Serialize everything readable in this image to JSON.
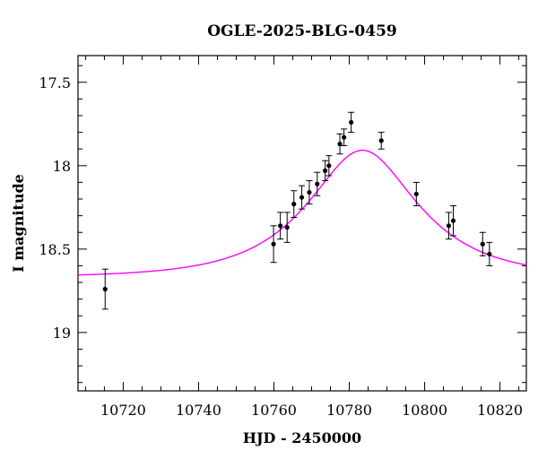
{
  "chart_data": {
    "type": "scatter",
    "title": "OGLE-2025-BLG-0459",
    "xlabel": "HJD - 2450000",
    "ylabel": "I magnitude",
    "xlim": [
      10708,
      10827
    ],
    "ylim": [
      19.35,
      17.34
    ],
    "y_inverted": true,
    "x_ticks": [
      10720,
      10740,
      10760,
      10780,
      10800,
      10820
    ],
    "y_ticks": [
      17.5,
      18,
      18.5,
      19
    ],
    "y_tick_labels": [
      "17.5",
      "18",
      "18.5",
      "19"
    ],
    "grid": false,
    "series": [
      {
        "kind": "data_with_errors",
        "color": "#000000",
        "points": [
          {
            "x": 10715.2,
            "y": 18.74,
            "err": 0.12
          },
          {
            "x": 10759.9,
            "y": 18.47,
            "err": 0.11
          },
          {
            "x": 10761.7,
            "y": 18.36,
            "err": 0.08
          },
          {
            "x": 10763.5,
            "y": 18.37,
            "err": 0.09
          },
          {
            "x": 10765.3,
            "y": 18.23,
            "err": 0.08
          },
          {
            "x": 10767.4,
            "y": 18.19,
            "err": 0.07
          },
          {
            "x": 10769.4,
            "y": 18.16,
            "err": 0.07
          },
          {
            "x": 10771.5,
            "y": 18.11,
            "err": 0.07
          },
          {
            "x": 10773.6,
            "y": 18.03,
            "err": 0.06
          },
          {
            "x": 10774.6,
            "y": 18.0,
            "err": 0.06
          },
          {
            "x": 10777.5,
            "y": 17.87,
            "err": 0.06
          },
          {
            "x": 10778.6,
            "y": 17.83,
            "err": 0.05
          },
          {
            "x": 10780.5,
            "y": 17.74,
            "err": 0.06
          },
          {
            "x": 10788.5,
            "y": 17.85,
            "err": 0.05
          },
          {
            "x": 10797.8,
            "y": 18.17,
            "err": 0.07
          },
          {
            "x": 10806.4,
            "y": 18.36,
            "err": 0.08
          },
          {
            "x": 10807.6,
            "y": 18.33,
            "err": 0.09
          },
          {
            "x": 10815.4,
            "y": 18.47,
            "err": 0.07
          },
          {
            "x": 10817.2,
            "y": 18.53,
            "err": 0.07
          }
        ]
      },
      {
        "kind": "model_curve",
        "color": "#ff00ff",
        "model": {
          "t0": 10783.5,
          "u0": 0.55,
          "tE": 24.0,
          "I_base": 18.67
        }
      }
    ]
  }
}
